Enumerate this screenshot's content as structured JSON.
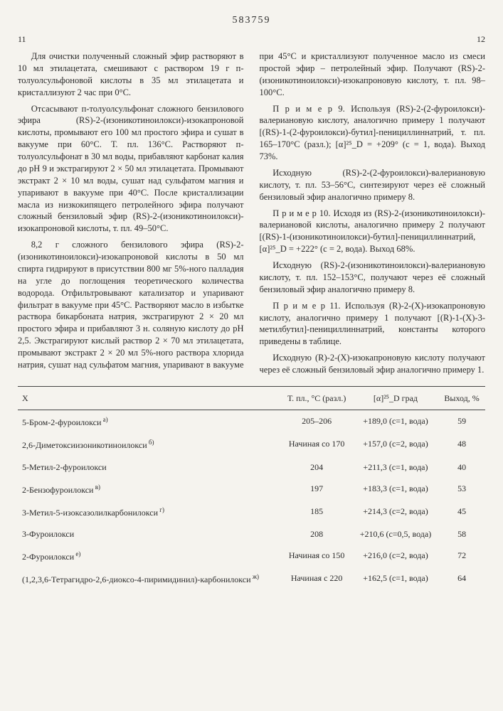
{
  "patent_number": "583759",
  "page_left": "11",
  "page_right": "12",
  "paragraphs": [
    "Для очистки полученный сложный эфир растворяют в 10 мл этилацетата, смешивают с раствором 19 г п-толуолсульфоновой кислоты в 35 мл этилацетата и кристаллизуют 2 час при 0°С.",
    "Отсасывают п-толуолсульфонат сложного бензилового эфира (RS)-2-(изоникотиноилокси)-изокапроновой кислоты, промывают его 100 мл простого эфира и сушат в вакууме при 60°С. Т. пл. 136°С. Растворяют п-толуолсульфонат в 30 мл воды, прибавляют карбонат калия до pH 9 и экстрагируют 2 × 50 мл этилацетата. Промывают экстракт 2 × 10 мл воды, сушат над сульфатом магния и упаривают в вакууме при 40°С. После кристаллизации масла из низкокипящего петролейного эфира получают сложный бензиловый эфир (RS)-2-(изоникотиноилокси)-изокапроновой кислоты, т. пл. 49–50°С.",
    "8,2 г сложного бензилового эфира (RS)-2-(изоникотиноилокси)-изокапроновой кислоты в 50 мл спирта гидрируют в присутствии 800 мг 5%-ного палладия на угле до поглощения теоретического количества водорода. Отфильтровывают катализатор и упаривают фильтрат в вакууме при 45°С. Растворяют масло в избытке раствора бикарбоната натрия, экстрагируют 2 × 20 мл простого эфира и прибавляют 3 н. соляную кислоту до pH 2,5. Экстрагируют кислый раствор 2 × 70 мл этилацетата, промывают экстракт 2 × 20 мл 5%-ного раствора хлорида натрия, сушат над сульфатом магния, упаривают в вакууме при 45°С и кристаллизуют полученное масло из смеси простой эфир – петролейный эфир. Получают (RS)-2-(изоникотиноилокси)-изокапроновую кислоту, т. пл. 98–100°С.",
    "П р и м е р 9. Используя (RS)-2-(2-фуроилокси)-валериановую кислоту, аналогично примеру 1 получают [(RS)-1-(2-фуроилокси)-бутил]-пенициллиннатрий, т. пл. 165–170°С (разл.); [α]²⁵_D = +209° (c = 1, вода). Выход 73%.",
    "Исходную (RS)-2-(2-фуроилокси)-валериановую кислоту, т. пл. 53–56°С, синтезируют через её сложный бензиловый эфир аналогично примеру 8.",
    "П р и м е р 10. Исходя из (RS)-2-(изоникотиноилокси)-валериановой кислоты, аналогично примеру 2 получают [(RS)-1-(изоникотиноилокси)-бутил]-пенициллиннатрий, [α]²⁵_D = +222° (c = 2, вода). Выход 68%.",
    "Исходную (RS)-2-(изоникотиноилокси)-валериановую кислоту, т. пл. 152–153°С, получают через её сложный бензиловый эфир аналогично примеру 8.",
    "П р и м е р 11. Используя (R)-2-(X)-изокапроновую кислоту, аналогично примеру 1 получают [(R)-1-(X)-3-метилбутил]-пенициллиннатрий, константы которого приведены в таблице.",
    "Исходную (R)-2-(X)-изокапроновую кислоту получают через её сложный бензиловый эфир аналогично примеру 1."
  ],
  "table": {
    "headers": {
      "x": "X",
      "mp": "Т. пл., °С (разл.)",
      "alpha": "[α]²⁵_D град",
      "yield": "Выход, %"
    },
    "rows": [
      {
        "x": "5-Бром-2-фуроилокси",
        "note": "а)",
        "mp": "205–206",
        "alpha": "+189,0 (c=1, вода)",
        "yield": "59"
      },
      {
        "x": "2,6-Диметоксиизоникотиноилокси",
        "note": "б)",
        "mp": "Начиная со 170",
        "alpha": "+157,0 (c=2, вода)",
        "yield": "48"
      },
      {
        "x": "5-Метил-2-фуроилокси",
        "note": "",
        "mp": "204",
        "alpha": "+211,3 (c=1, вода)",
        "yield": "40"
      },
      {
        "x": "2-Бензофуроилокси",
        "note": "в)",
        "mp": "197",
        "alpha": "+183,3 (c=1, вода)",
        "yield": "53"
      },
      {
        "x": "3-Метил-5-изоксазолилкарбонилокси",
        "note": "г)",
        "mp": "185",
        "alpha": "+214,3 (c=2, вода)",
        "yield": "45"
      },
      {
        "x": "3-Фуроилокси",
        "note": "",
        "mp": "208",
        "alpha": "+210,6 (c=0,5, вода)",
        "yield": "58"
      },
      {
        "x": "2-Фуроилокси",
        "note": "е)",
        "mp": "Начиная со 150",
        "alpha": "+216,0 (c=2, вода)",
        "yield": "72"
      },
      {
        "x": "(1,2,3,6-Тетрагидро-2,6-диоксо-4-пиримидинил)-карбонилокси",
        "note": "ж)",
        "mp": "Начиная с 220",
        "alpha": "+162,5 (c=1, вода)",
        "yield": "64"
      }
    ]
  }
}
